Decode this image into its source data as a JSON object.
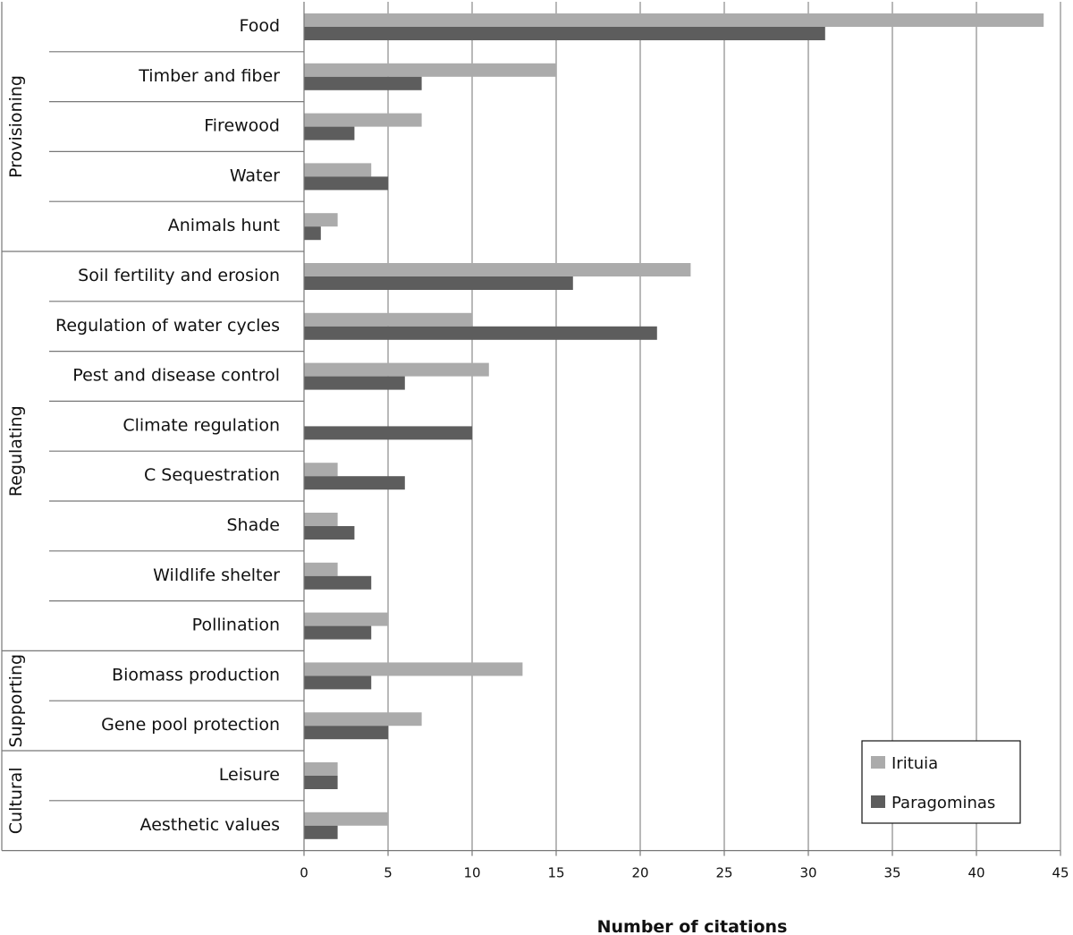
{
  "chart_data": {
    "type": "bar",
    "orientation": "horizontal",
    "categories": [
      "Food",
      "Timber and fiber",
      "Firewood",
      "Water",
      "Animals hunt",
      "Soil fertility and erosion",
      "Regulation of water cycles",
      "Pest and disease control",
      "Climate regulation",
      "C Sequestration",
      "Shade",
      "Wildlife shelter",
      "Pollination",
      "Biomass production",
      "Gene pool protection",
      "Leisure",
      "Aesthetic values"
    ],
    "groups": [
      {
        "name": "Provisioning",
        "categories": [
          "Food",
          "Timber and fiber",
          "Firewood",
          "Water",
          "Animals hunt"
        ]
      },
      {
        "name": "Regulating",
        "categories": [
          "Soil fertility and erosion",
          "Regulation of water cycles",
          "Pest and disease control",
          "Climate regulation",
          "C Sequestration",
          "Shade",
          "Wildlife shelter",
          "Pollination"
        ]
      },
      {
        "name": "Supporting",
        "categories": [
          "Biomass production",
          "Gene pool protection"
        ]
      },
      {
        "name": "Cultural",
        "categories": [
          "Leisure",
          "Aesthetic values"
        ]
      }
    ],
    "series": [
      {
        "name": "Irituia",
        "color": "#ababab",
        "values": [
          44,
          15,
          7,
          4,
          2,
          23,
          10,
          11,
          0,
          2,
          2,
          2,
          5,
          13,
          7,
          2,
          5
        ]
      },
      {
        "name": "Paragominas",
        "color": "#5d5d5d",
        "values": [
          31,
          7,
          3,
          5,
          1,
          16,
          21,
          6,
          10,
          6,
          3,
          4,
          4,
          4,
          5,
          2,
          2
        ]
      }
    ],
    "xlabel": "Number of citations",
    "ylabel": "",
    "title": "",
    "xlim": [
      0,
      45
    ],
    "xticks": [
      0,
      5,
      10,
      15,
      20,
      25,
      30,
      35,
      40,
      45
    ],
    "grid": "vertical",
    "legend_position": "bottom-right"
  }
}
